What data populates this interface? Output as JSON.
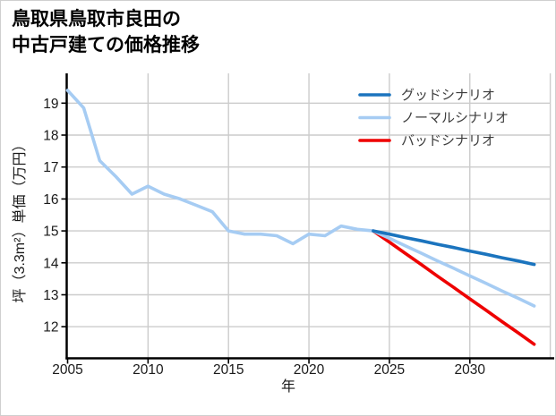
{
  "title": {
    "line1": "鳥取県鳥取市良田の",
    "line2": "中古戸建ての価格推移"
  },
  "chart_data": {
    "type": "line",
    "title": "鳥取県鳥取市良田の中古戸建ての価格推移",
    "xlabel": "年",
    "ylabel": "坪（3.3m²）単価（万円）",
    "x_ticks": [
      2005,
      2010,
      2015,
      2020,
      2025,
      2030
    ],
    "y_ticks": [
      12,
      13,
      14,
      15,
      16,
      17,
      18,
      19
    ],
    "xlim": [
      2005,
      2035.3
    ],
    "ylim": [
      11.0,
      19.9
    ],
    "grid": true,
    "legend_position": "top-right",
    "series": [
      {
        "key": "normal",
        "name": "ノーマルシナリオ",
        "color": "#A6CCF3",
        "width": 3.6,
        "x": [
          2005,
          2006,
          2007,
          2008,
          2009,
          2010,
          2011,
          2012,
          2013,
          2014,
          2015,
          2016,
          2017,
          2018,
          2019,
          2020,
          2021,
          2022,
          2023,
          2024,
          2025,
          2026,
          2027,
          2028,
          2029,
          2030,
          2031,
          2032,
          2033,
          2034
        ],
        "values": [
          19.4,
          18.85,
          17.2,
          16.7,
          16.15,
          16.4,
          16.15,
          16.0,
          15.8,
          15.6,
          15.0,
          14.9,
          14.9,
          14.85,
          14.6,
          14.9,
          14.85,
          15.15,
          15.05,
          15.0,
          14.77,
          14.53,
          14.3,
          14.06,
          13.83,
          13.59,
          13.36,
          13.12,
          12.89,
          12.65
        ]
      },
      {
        "key": "good",
        "name": "グッドシナリオ",
        "color": "#1B74BE",
        "width": 3.6,
        "x": [
          2024,
          2025,
          2026,
          2027,
          2028,
          2029,
          2030,
          2031,
          2032,
          2033,
          2034
        ],
        "values": [
          15.0,
          14.9,
          14.79,
          14.69,
          14.58,
          14.48,
          14.37,
          14.27,
          14.16,
          14.06,
          13.95
        ]
      },
      {
        "key": "bad",
        "name": "バッドシナリオ",
        "color": "#EE0000",
        "width": 3.6,
        "x": [
          2024,
          2025,
          2026,
          2027,
          2028,
          2029,
          2030,
          2031,
          2032,
          2033,
          2034
        ],
        "values": [
          15.0,
          14.65,
          14.29,
          13.94,
          13.58,
          13.23,
          12.87,
          12.52,
          12.16,
          11.81,
          11.45
        ]
      }
    ]
  },
  "legend": {
    "entries": [
      {
        "key": "good",
        "label": "グッドシナリオ"
      },
      {
        "key": "normal",
        "label": "ノーマルシナリオ"
      },
      {
        "key": "bad",
        "label": "バッドシナリオ"
      }
    ]
  }
}
